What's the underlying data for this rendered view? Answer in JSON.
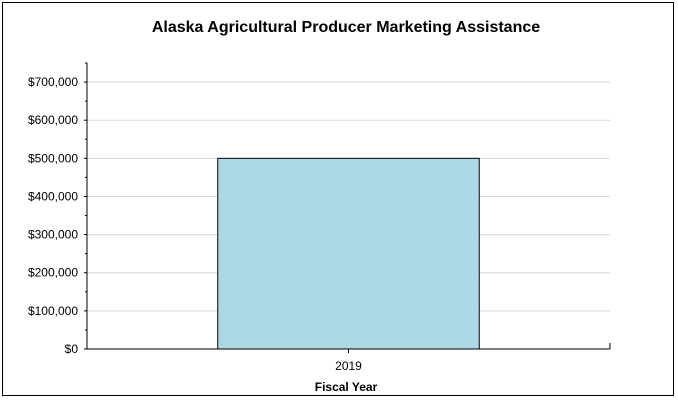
{
  "chart_data": {
    "type": "bar",
    "title": "Alaska Agricultural Producer Marketing Assistance",
    "xlabel": "Fiscal Year",
    "ylabel": "",
    "categories": [
      "2019"
    ],
    "values": [
      500000
    ],
    "ylim": [
      0,
      750000
    ],
    "yticks": [
      0,
      100000,
      200000,
      300000,
      400000,
      500000,
      600000,
      700000
    ],
    "ytick_labels": [
      "$0",
      "$100,000",
      "$200,000",
      "$300,000",
      "$400,000",
      "$500,000",
      "$600,000",
      "$700,000"
    ],
    "grid": true,
    "legend": "none",
    "colors": {
      "bar_fill": "#add8e6",
      "bar_stroke": "#000000",
      "grid": "#d9d9d9",
      "axis": "#000000"
    }
  }
}
